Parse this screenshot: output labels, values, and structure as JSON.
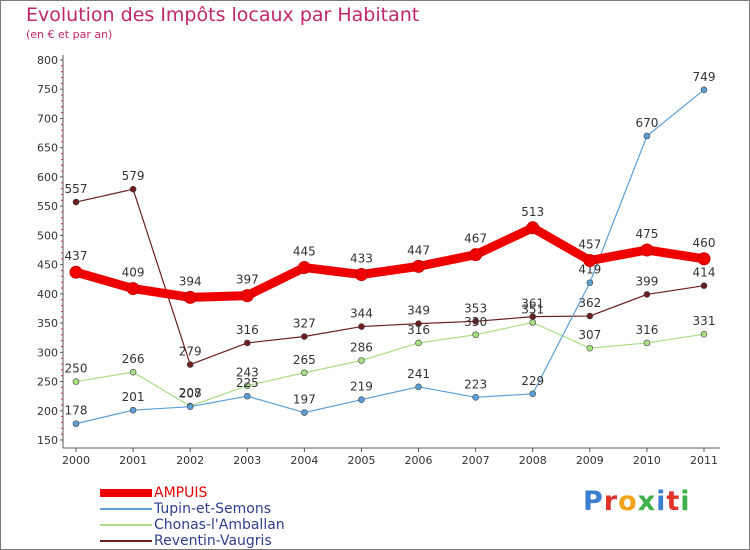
{
  "header": {
    "title": "Evolution des Impôts locaux par Habitant",
    "subtitle": "(en € et par an)"
  },
  "logo": {
    "text": "Proxiti",
    "letter_colors": [
      "#3b7fd0",
      "#e0342a",
      "#f2a31b",
      "#3bb24a",
      "#3b7fd0",
      "#e0342a",
      "#3bb24a"
    ]
  },
  "chart_data": {
    "type": "line",
    "title": "Evolution des Impôts locaux par Habitant",
    "subtitle": "(en € et par an)",
    "xlabel": "",
    "ylabel": "",
    "x": [
      "2000",
      "2001",
      "2002",
      "2003",
      "2004",
      "2005",
      "2006",
      "2007",
      "2008",
      "2009",
      "2010",
      "2011"
    ],
    "ylim": [
      150,
      800
    ],
    "yticks": [
      150,
      200,
      250,
      300,
      350,
      400,
      450,
      500,
      550,
      600,
      650,
      700,
      750,
      800
    ],
    "grid": false,
    "legend_position": "bottom-left",
    "series": [
      {
        "name": "Reventin-Vaugris",
        "color": "#6b1f1f",
        "values": [
          557,
          579,
          279,
          316,
          327,
          344,
          349,
          353,
          361,
          362,
          399,
          414
        ]
      },
      {
        "name": "Chonas-l'Amballan",
        "color": "#a8df84",
        "values": [
          250,
          266,
          208,
          243,
          265,
          286,
          316,
          330,
          351,
          307,
          316,
          331
        ]
      },
      {
        "name": "Tupin-et-Semons",
        "color": "#5b9fd6",
        "values": [
          178,
          201,
          207,
          225,
          197,
          219,
          241,
          223,
          229,
          419,
          670,
          749
        ]
      },
      {
        "name": "AMPUIS",
        "color": "#ee0000",
        "values": [
          437,
          409,
          394,
          397,
          445,
          433,
          447,
          467,
          513,
          457,
          475,
          460
        ]
      }
    ]
  }
}
